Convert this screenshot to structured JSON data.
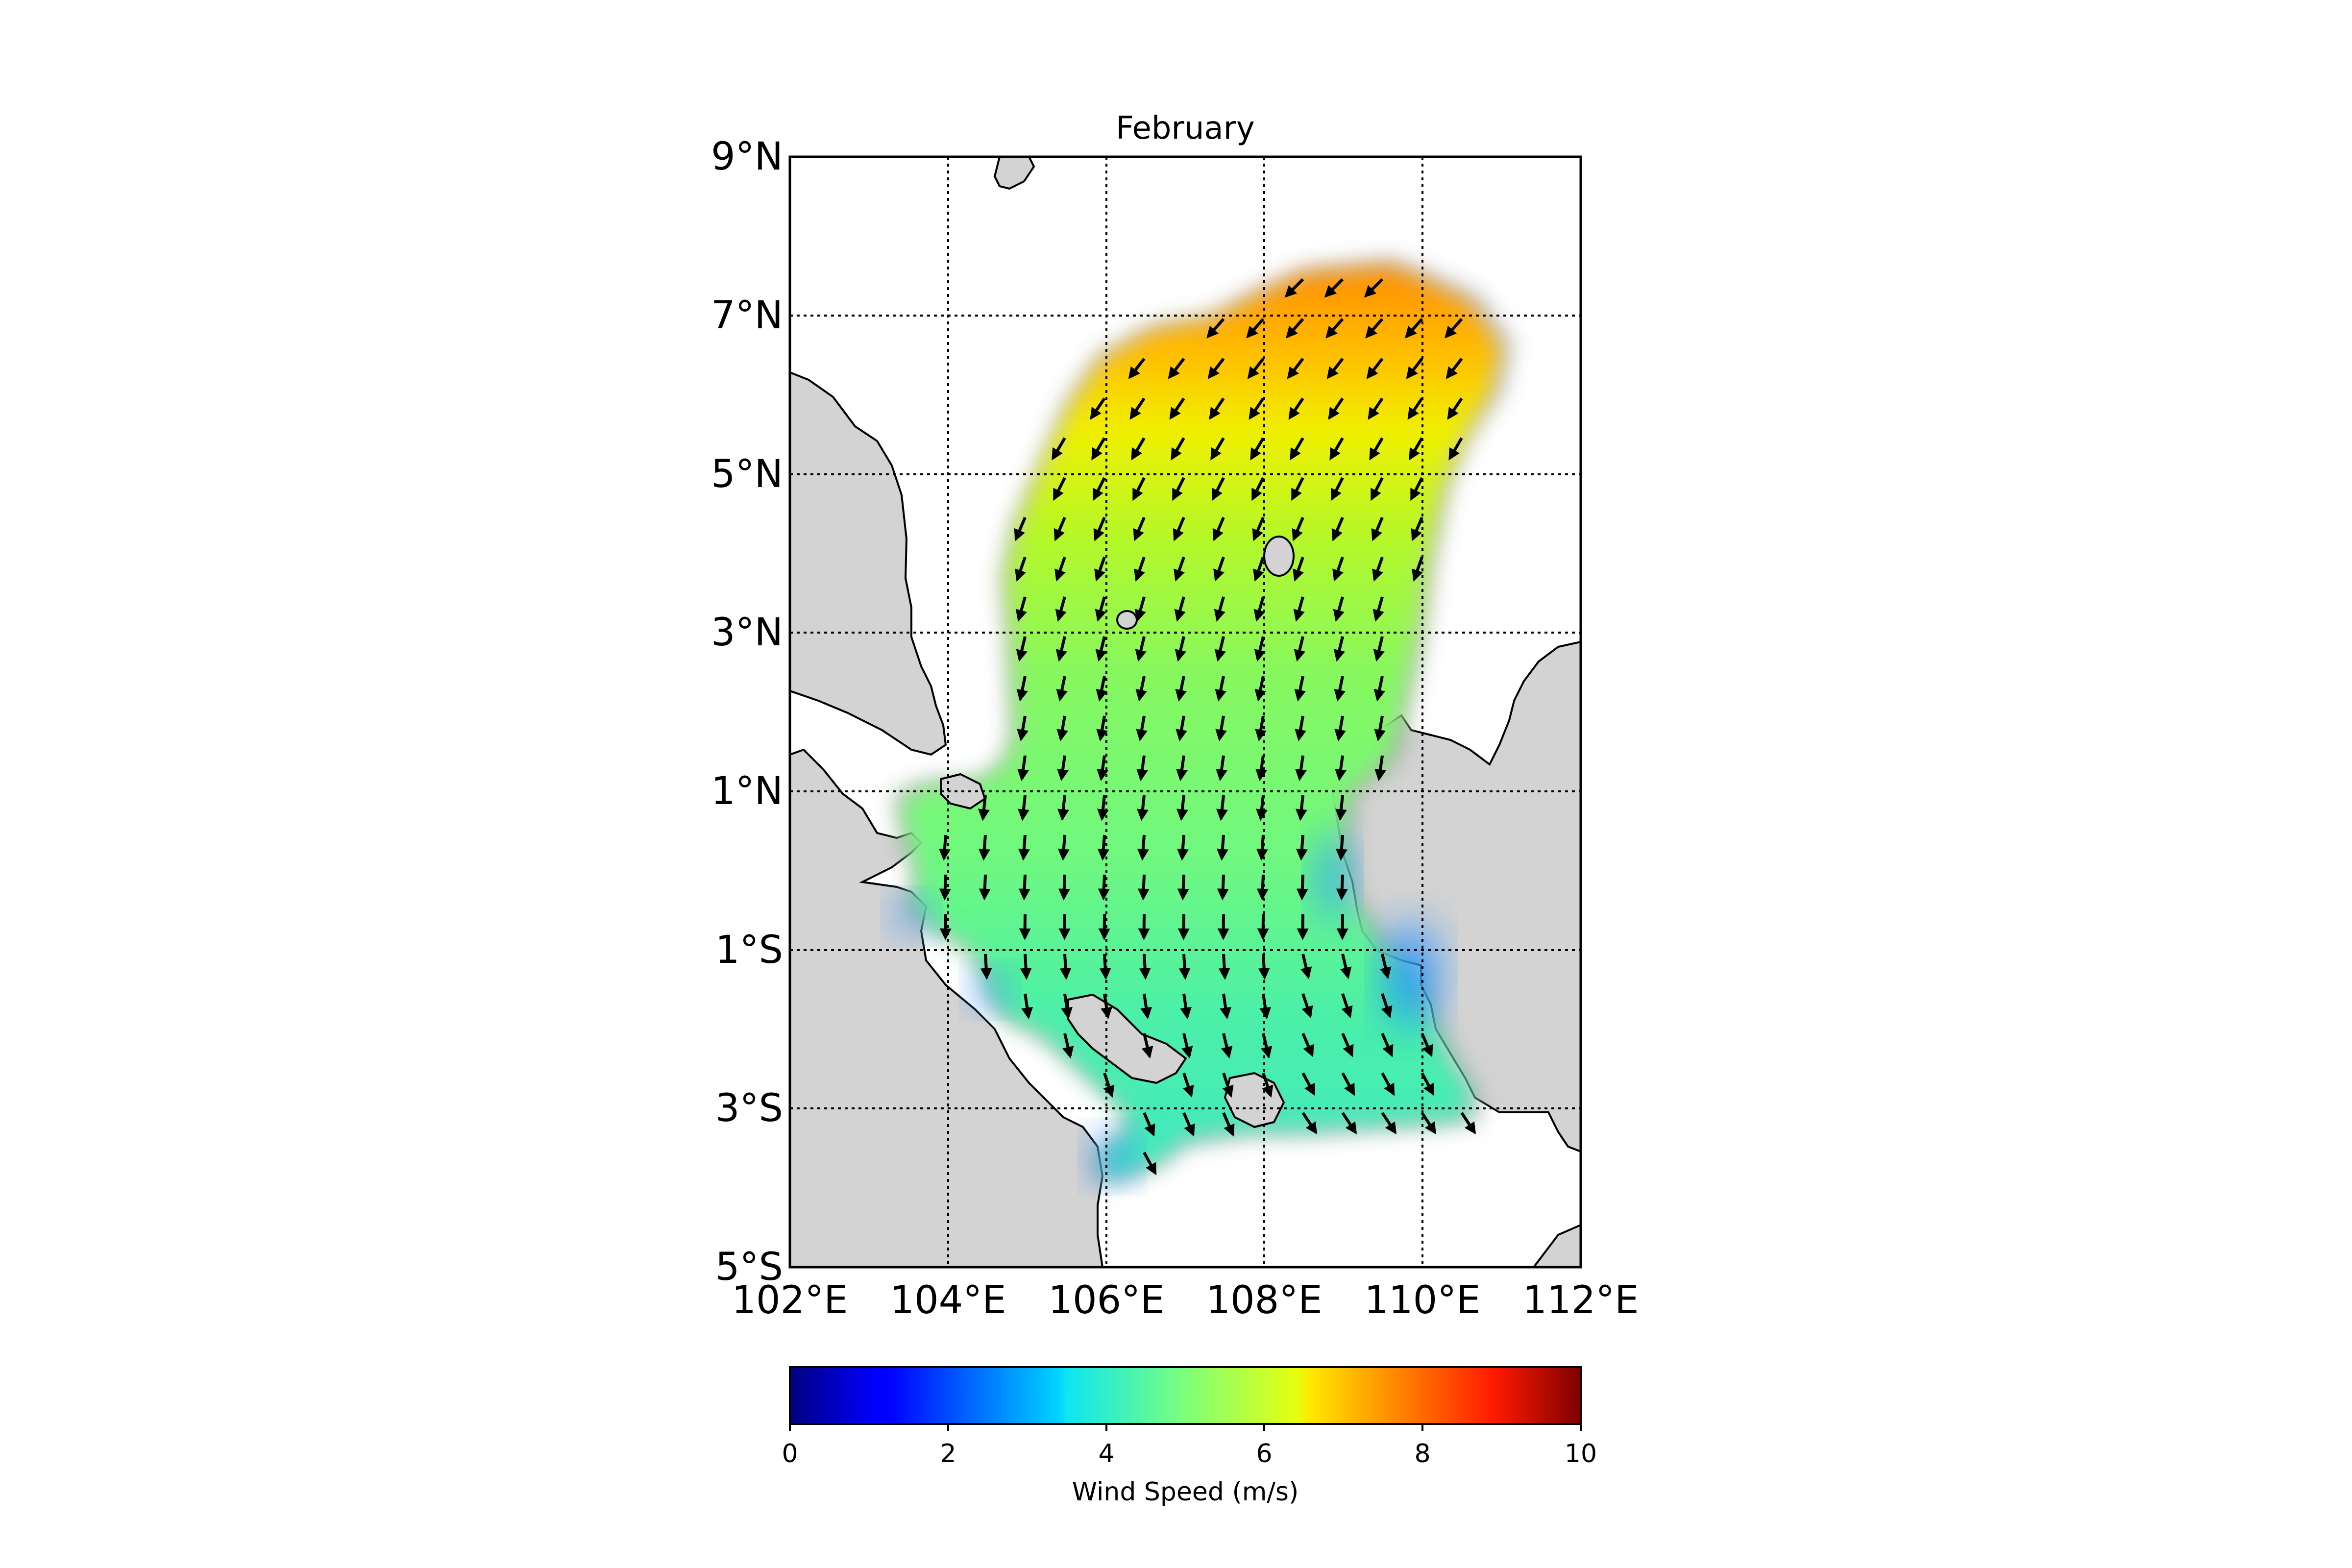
{
  "map": {
    "title": "February",
    "lon_ticks": [
      "102°E",
      "104°E",
      "106°E",
      "108°E",
      "110°E",
      "112°E"
    ],
    "lat_ticks": [
      "9°N",
      "7°N",
      "5°N",
      "3°N",
      "1°N",
      "1°S",
      "3°S",
      "5°S"
    ],
    "lon_range": [
      102,
      112
    ],
    "lat_range": [
      -5,
      9
    ],
    "gridlines": "dotted",
    "land_color": "#d3d3d3",
    "ocean_color": "#ffffff",
    "field": "wind speed with wind direction arrows"
  },
  "colorbar": {
    "label": "Wind Speed (m/s)",
    "ticks": [
      "0",
      "2",
      "4",
      "6",
      "8",
      "10"
    ],
    "range": [
      0,
      10
    ],
    "colormap": "jet",
    "orientation": "horizontal"
  },
  "chart_data": {
    "type": "heatmap",
    "title": "February",
    "xlabel": "",
    "ylabel": "",
    "xlim": [
      102,
      112
    ],
    "ylim": [
      -5,
      9
    ],
    "colorbar_label": "Wind Speed (m/s)",
    "colorbar_range": [
      0,
      10
    ],
    "regions": [
      {
        "area": "northern basin ~7°N, 108–110°E",
        "wind_speed": 7.5,
        "direction": "SW"
      },
      {
        "area": "~6°N, 106–110°E",
        "wind_speed": 6.5,
        "direction": "SW"
      },
      {
        "area": "~5°N, 105–109°E",
        "wind_speed": 6.0,
        "direction": "SSW"
      },
      {
        "area": "~3°N, 105–108°E",
        "wind_speed": 5.3,
        "direction": "S"
      },
      {
        "area": "~1°N, 104–108°E",
        "wind_speed": 5.0,
        "direction": "S"
      },
      {
        "area": "~1°S, 106–109°E",
        "wind_speed": 4.8,
        "direction": "S"
      },
      {
        "area": "~2°S, 108–110°E",
        "wind_speed": 4.2,
        "direction": "SSE"
      },
      {
        "area": "~3°S, 106–108°E",
        "wind_speed": 4.2,
        "direction": "SSE"
      },
      {
        "area": "coastal ~1.5°S, 109.8°E",
        "wind_speed": 2.8,
        "direction": "SSE"
      },
      {
        "area": "coastal ~0.3°S, 109.2°E",
        "wind_speed": 3.0,
        "direction": "S"
      }
    ]
  }
}
